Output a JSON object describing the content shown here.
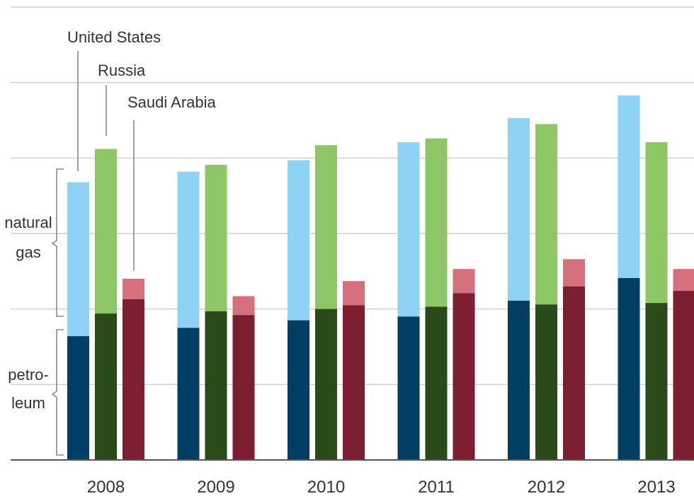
{
  "chart_data": {
    "type": "bar",
    "stacked": true,
    "categories": [
      "2008",
      "2009",
      "2010",
      "2011",
      "2012",
      "2013"
    ],
    "countries": [
      {
        "name": "United States",
        "petroleum_color": "#003f63",
        "gas_color": "#8fd3f4",
        "petroleum": [
          16.4,
          17.5,
          18.5,
          19.0,
          21.1,
          24.1
        ],
        "total": [
          36.8,
          38.2,
          39.7,
          42.1,
          45.3,
          48.3
        ]
      },
      {
        "name": "Russia",
        "petroleum_color": "#2a4a1a",
        "gas_color": "#8cc665",
        "petroleum": [
          19.4,
          19.7,
          20.0,
          20.3,
          20.6,
          20.8
        ],
        "total": [
          41.2,
          39.1,
          41.7,
          42.6,
          44.5,
          42.1
        ]
      },
      {
        "name": "Saudi Arabia",
        "petroleum_color": "#7a1e30",
        "gas_color": "#d6707d",
        "petroleum": [
          21.3,
          19.2,
          20.5,
          22.1,
          23.0,
          22.4
        ],
        "total": [
          24.0,
          21.7,
          23.7,
          25.3,
          26.6,
          25.3
        ]
      }
    ],
    "ylim": [
      0,
      60
    ],
    "grid": true,
    "xlabel": "",
    "ylabel": ""
  },
  "labels": {
    "segment_natural_gas": [
      "natural",
      "gas"
    ],
    "segment_petroleum": [
      "petro-",
      "leum"
    ]
  }
}
